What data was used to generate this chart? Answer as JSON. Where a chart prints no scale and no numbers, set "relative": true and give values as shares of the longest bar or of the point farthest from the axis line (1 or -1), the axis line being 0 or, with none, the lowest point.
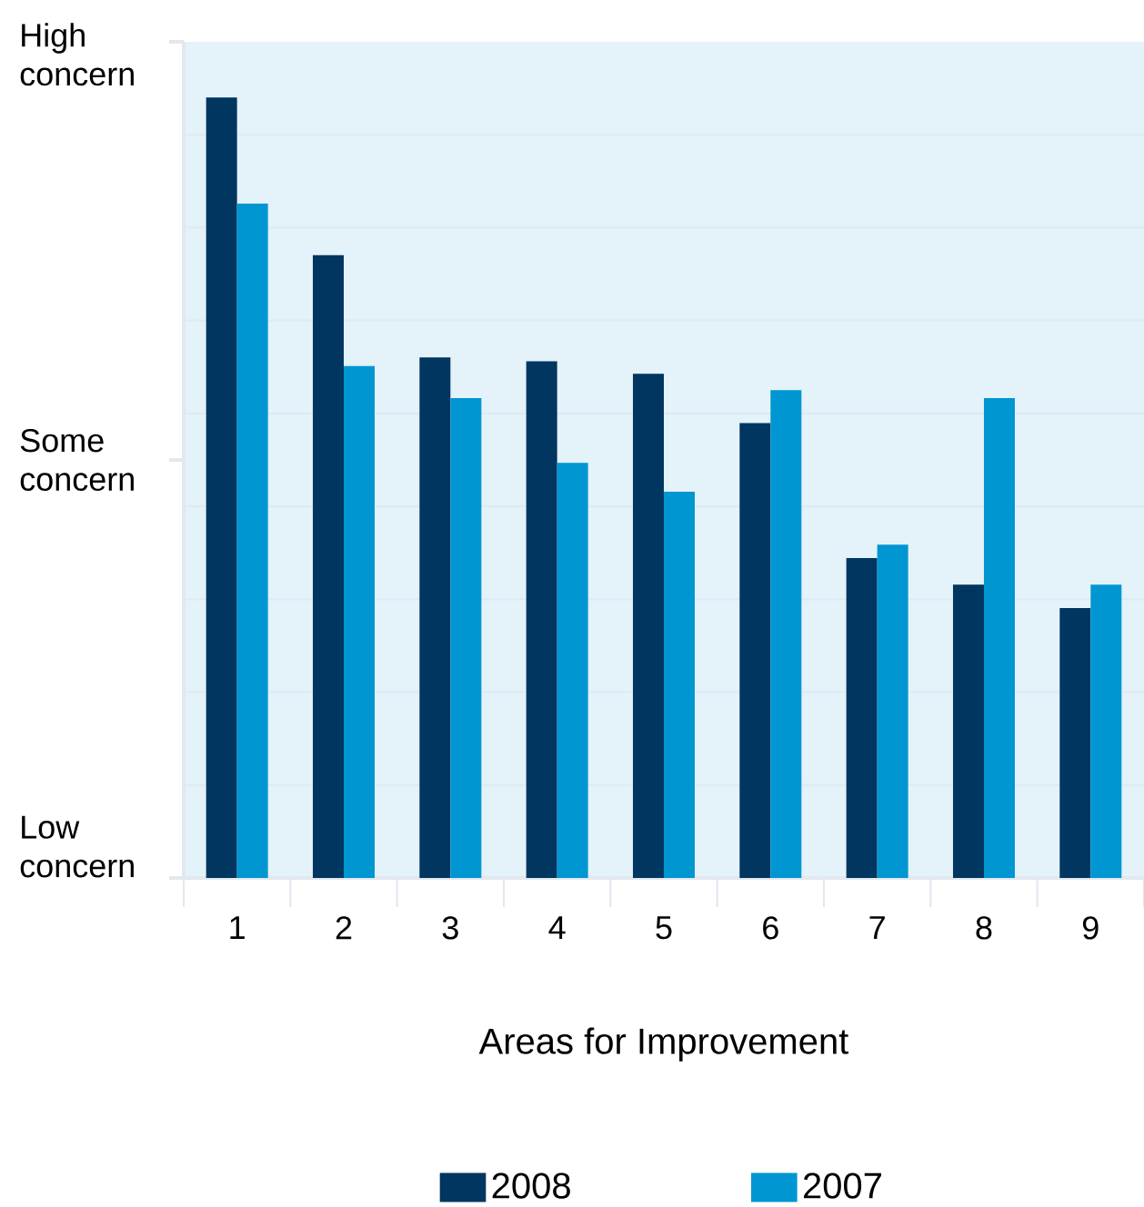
{
  "chart_data": {
    "type": "bar",
    "xlabel": "Areas for Improvement",
    "relative": true,
    "categories": [
      "1",
      "2",
      "3",
      "4",
      "5",
      "6",
      "7",
      "8",
      "9"
    ],
    "series": [
      {
        "name": "2008",
        "color": "#003660",
        "values": [
          1,
          0.798,
          0.667,
          0.662,
          0.646,
          0.583,
          0.41,
          0.376,
          0.346
        ]
      },
      {
        "name": "2007",
        "color": "#0096d2",
        "values": [
          0.864,
          0.656,
          0.615,
          0.532,
          0.495,
          0.625,
          0.427,
          0.615,
          0.376
        ]
      }
    ],
    "annotations": [
      "High concern",
      "Some concern",
      "Low concern"
    ],
    "grid": "y",
    "legend": "bottom"
  }
}
